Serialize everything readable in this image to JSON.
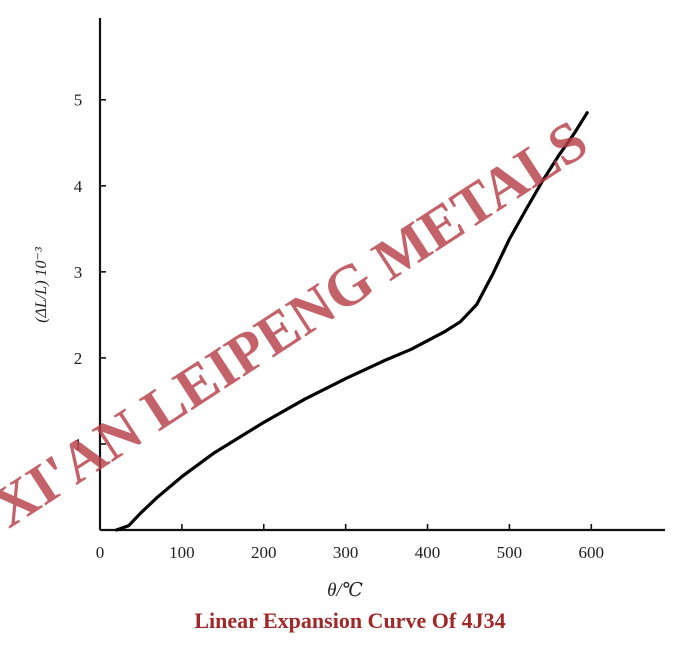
{
  "chart_data": {
    "type": "line",
    "title": "",
    "xlabel": "θ/℃",
    "ylabel": "(ΔL/L) 10⁻³",
    "xlim": [
      0,
      690
    ],
    "ylim": [
      0,
      5.95
    ],
    "x_ticks": [
      0,
      100,
      200,
      300,
      400,
      500,
      600
    ],
    "x_tick_labels": [
      "0",
      "100",
      "200",
      "300",
      "400",
      "500",
      "600"
    ],
    "y_ticks": [
      1,
      2,
      3,
      4,
      5
    ],
    "y_tick_labels": [
      "1",
      "2",
      "3",
      "4",
      "5"
    ],
    "grid": false,
    "series": [
      {
        "x": [
          20,
          35,
          50,
          70,
          100,
          140,
          200,
          250,
          300,
          350,
          380,
          400,
          420,
          440,
          460,
          480,
          500,
          520,
          540,
          560,
          580,
          595
        ],
        "y": [
          0,
          0.05,
          0.2,
          0.38,
          0.62,
          0.9,
          1.25,
          1.52,
          1.76,
          1.98,
          2.1,
          2.2,
          2.3,
          2.42,
          2.62,
          2.98,
          3.38,
          3.72,
          4.05,
          4.35,
          4.62,
          4.85
        ],
        "color": "#000000"
      }
    ]
  },
  "watermark": "XI'AN LEIPENG METALS",
  "caption": "Linear Expansion Curve Of 4J34"
}
